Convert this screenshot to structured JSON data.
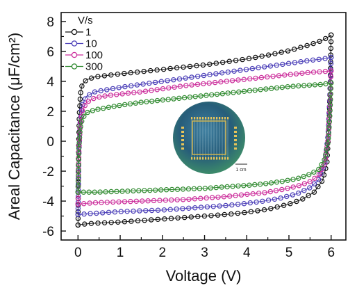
{
  "chart_data": {
    "type": "line",
    "title": "",
    "xlabel": "Voltage (V)",
    "ylabel": "Areal Capacitance (μF/cm²)",
    "xlim": [
      -0.4,
      6.35
    ],
    "ylim": [
      -6.6,
      8.6
    ],
    "xticks": [
      "0",
      "1",
      "2",
      "3",
      "4",
      "5",
      "6"
    ],
    "yticks": [
      "-6",
      "-4",
      "-2",
      "0",
      "2",
      "4",
      "6",
      "8"
    ],
    "grid": false,
    "legend": {
      "title": "V/s",
      "placement": "top-left",
      "entries": [
        "1",
        "10",
        "100",
        "300"
      ]
    },
    "marker": "open-circle",
    "series": [
      {
        "name": "1",
        "color": "#111111",
        "upper": {
          "x": [
            0,
            0.01,
            0.03,
            0.06,
            0.1,
            0.2,
            0.4,
            0.7,
            1,
            1.5,
            2,
            2.5,
            3,
            3.5,
            4,
            4.5,
            5,
            5.5,
            5.8,
            5.95,
            6
          ],
          "y": [
            -5.6,
            -1.5,
            1.8,
            3.2,
            3.8,
            4.1,
            4.3,
            4.4,
            4.5,
            4.65,
            4.8,
            4.95,
            5.1,
            5.3,
            5.5,
            5.75,
            6.05,
            6.45,
            6.75,
            7.0,
            7.1
          ]
        },
        "lower": {
          "x": [
            6,
            5.98,
            5.95,
            5.9,
            5.8,
            5.6,
            5.3,
            5,
            4.5,
            4,
            3.5,
            3,
            2.5,
            2,
            1.5,
            1,
            0.6,
            0.3,
            0.1,
            0.02,
            0
          ],
          "y": [
            7.1,
            4.0,
            1.0,
            -1.5,
            -2.6,
            -3.4,
            -3.9,
            -4.2,
            -4.55,
            -4.75,
            -4.9,
            -5.0,
            -5.1,
            -5.2,
            -5.3,
            -5.4,
            -5.45,
            -5.5,
            -5.55,
            -5.6,
            -5.6
          ]
        }
      },
      {
        "name": "10",
        "color": "#4b3fb8",
        "upper": {
          "x": [
            0,
            0.02,
            0.05,
            0.1,
            0.2,
            0.4,
            0.7,
            1,
            1.5,
            2,
            2.5,
            3,
            3.5,
            4,
            4.5,
            5,
            5.5,
            5.8,
            6
          ],
          "y": [
            -4.9,
            -1.0,
            1.2,
            2.4,
            3.0,
            3.3,
            3.45,
            3.6,
            3.8,
            4.0,
            4.2,
            4.4,
            4.6,
            4.8,
            5.0,
            5.2,
            5.4,
            5.5,
            5.6
          ]
        },
        "lower": {
          "x": [
            6,
            5.97,
            5.93,
            5.85,
            5.7,
            5.5,
            5.2,
            4.8,
            4.4,
            4,
            3.5,
            3,
            2.5,
            2,
            1.5,
            1,
            0.5,
            0.2,
            0.05,
            0
          ],
          "y": [
            5.6,
            3.0,
            0.5,
            -1.5,
            -2.6,
            -3.1,
            -3.5,
            -3.8,
            -4.0,
            -4.15,
            -4.3,
            -4.4,
            -4.5,
            -4.6,
            -4.65,
            -4.7,
            -4.8,
            -4.85,
            -4.9,
            -4.9
          ]
        }
      },
      {
        "name": "100",
        "color": "#cc2f9c",
        "upper": {
          "x": [
            0,
            0.02,
            0.05,
            0.1,
            0.2,
            0.4,
            0.7,
            1,
            1.5,
            2,
            2.5,
            3,
            3.5,
            4,
            4.5,
            5,
            5.5,
            5.8,
            6
          ],
          "y": [
            -4.2,
            -0.8,
            1.0,
            2.0,
            2.6,
            2.9,
            3.05,
            3.15,
            3.3,
            3.5,
            3.7,
            3.85,
            4.0,
            4.15,
            4.3,
            4.45,
            4.6,
            4.65,
            4.7
          ]
        },
        "lower": {
          "x": [
            6,
            5.97,
            5.93,
            5.85,
            5.7,
            5.5,
            5.2,
            4.8,
            4.4,
            4,
            3.5,
            3,
            2.5,
            2,
            1.5,
            1,
            0.5,
            0.2,
            0.05,
            0
          ],
          "y": [
            4.7,
            2.4,
            0.2,
            -1.5,
            -2.3,
            -2.7,
            -3.0,
            -3.25,
            -3.45,
            -3.55,
            -3.7,
            -3.8,
            -3.9,
            -3.95,
            -4.0,
            -4.05,
            -4.1,
            -4.15,
            -4.2,
            -4.2
          ]
        }
      },
      {
        "name": "300",
        "color": "#2f8a2f",
        "upper": {
          "x": [
            0,
            0.02,
            0.05,
            0.1,
            0.2,
            0.4,
            0.7,
            1,
            1.5,
            2,
            2.5,
            3,
            3.5,
            4,
            4.5,
            5,
            5.5,
            5.8,
            6
          ],
          "y": [
            -3.4,
            -0.5,
            0.8,
            1.5,
            1.9,
            2.1,
            2.25,
            2.4,
            2.6,
            2.75,
            2.9,
            3.05,
            3.2,
            3.35,
            3.5,
            3.65,
            3.75,
            3.8,
            3.9
          ]
        },
        "lower": {
          "x": [
            6,
            5.97,
            5.93,
            5.85,
            5.7,
            5.5,
            5.2,
            4.8,
            4.4,
            4,
            3.5,
            3,
            2.5,
            2,
            1.5,
            1,
            0.5,
            0.2,
            0.05,
            0
          ],
          "y": [
            3.9,
            1.8,
            0.0,
            -1.2,
            -1.9,
            -2.2,
            -2.5,
            -2.7,
            -2.85,
            -2.95,
            -3.05,
            -3.15,
            -3.2,
            -3.25,
            -3.3,
            -3.35,
            -3.4,
            -3.4,
            -3.4,
            -3.4
          ]
        }
      }
    ],
    "inset": {
      "description_label": "1 cm",
      "scale_label": "1 cm"
    }
  }
}
